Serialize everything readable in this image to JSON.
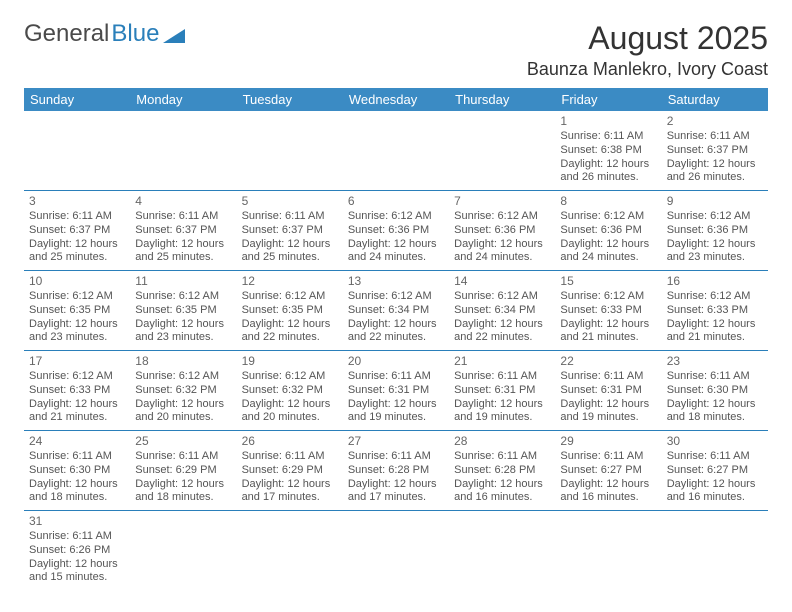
{
  "logo": {
    "text1": "General",
    "text2": "Blue",
    "triangle_color": "#2a7fba"
  },
  "title": "August 2025",
  "location": "Baunza Manlekro, Ivory Coast",
  "colors": {
    "header_bg": "#3b8bc4",
    "header_text": "#ffffff",
    "row_border": "#2a7fba",
    "body_text": "#555555",
    "title_text": "#333333"
  },
  "typography": {
    "title_fontsize": 32,
    "location_fontsize": 18,
    "weekday_fontsize": 13,
    "cell_fontsize": 11,
    "daynum_fontsize": 12
  },
  "weekdays": [
    "Sunday",
    "Monday",
    "Tuesday",
    "Wednesday",
    "Thursday",
    "Friday",
    "Saturday"
  ],
  "weeks": [
    [
      null,
      null,
      null,
      null,
      null,
      {
        "n": "1",
        "sr": "Sunrise: 6:11 AM",
        "ss": "Sunset: 6:38 PM",
        "dl": "Daylight: 12 hours and 26 minutes."
      },
      {
        "n": "2",
        "sr": "Sunrise: 6:11 AM",
        "ss": "Sunset: 6:37 PM",
        "dl": "Daylight: 12 hours and 26 minutes."
      }
    ],
    [
      {
        "n": "3",
        "sr": "Sunrise: 6:11 AM",
        "ss": "Sunset: 6:37 PM",
        "dl": "Daylight: 12 hours and 25 minutes."
      },
      {
        "n": "4",
        "sr": "Sunrise: 6:11 AM",
        "ss": "Sunset: 6:37 PM",
        "dl": "Daylight: 12 hours and 25 minutes."
      },
      {
        "n": "5",
        "sr": "Sunrise: 6:11 AM",
        "ss": "Sunset: 6:37 PM",
        "dl": "Daylight: 12 hours and 25 minutes."
      },
      {
        "n": "6",
        "sr": "Sunrise: 6:12 AM",
        "ss": "Sunset: 6:36 PM",
        "dl": "Daylight: 12 hours and 24 minutes."
      },
      {
        "n": "7",
        "sr": "Sunrise: 6:12 AM",
        "ss": "Sunset: 6:36 PM",
        "dl": "Daylight: 12 hours and 24 minutes."
      },
      {
        "n": "8",
        "sr": "Sunrise: 6:12 AM",
        "ss": "Sunset: 6:36 PM",
        "dl": "Daylight: 12 hours and 24 minutes."
      },
      {
        "n": "9",
        "sr": "Sunrise: 6:12 AM",
        "ss": "Sunset: 6:36 PM",
        "dl": "Daylight: 12 hours and 23 minutes."
      }
    ],
    [
      {
        "n": "10",
        "sr": "Sunrise: 6:12 AM",
        "ss": "Sunset: 6:35 PM",
        "dl": "Daylight: 12 hours and 23 minutes."
      },
      {
        "n": "11",
        "sr": "Sunrise: 6:12 AM",
        "ss": "Sunset: 6:35 PM",
        "dl": "Daylight: 12 hours and 23 minutes."
      },
      {
        "n": "12",
        "sr": "Sunrise: 6:12 AM",
        "ss": "Sunset: 6:35 PM",
        "dl": "Daylight: 12 hours and 22 minutes."
      },
      {
        "n": "13",
        "sr": "Sunrise: 6:12 AM",
        "ss": "Sunset: 6:34 PM",
        "dl": "Daylight: 12 hours and 22 minutes."
      },
      {
        "n": "14",
        "sr": "Sunrise: 6:12 AM",
        "ss": "Sunset: 6:34 PM",
        "dl": "Daylight: 12 hours and 22 minutes."
      },
      {
        "n": "15",
        "sr": "Sunrise: 6:12 AM",
        "ss": "Sunset: 6:33 PM",
        "dl": "Daylight: 12 hours and 21 minutes."
      },
      {
        "n": "16",
        "sr": "Sunrise: 6:12 AM",
        "ss": "Sunset: 6:33 PM",
        "dl": "Daylight: 12 hours and 21 minutes."
      }
    ],
    [
      {
        "n": "17",
        "sr": "Sunrise: 6:12 AM",
        "ss": "Sunset: 6:33 PM",
        "dl": "Daylight: 12 hours and 21 minutes."
      },
      {
        "n": "18",
        "sr": "Sunrise: 6:12 AM",
        "ss": "Sunset: 6:32 PM",
        "dl": "Daylight: 12 hours and 20 minutes."
      },
      {
        "n": "19",
        "sr": "Sunrise: 6:12 AM",
        "ss": "Sunset: 6:32 PM",
        "dl": "Daylight: 12 hours and 20 minutes."
      },
      {
        "n": "20",
        "sr": "Sunrise: 6:11 AM",
        "ss": "Sunset: 6:31 PM",
        "dl": "Daylight: 12 hours and 19 minutes."
      },
      {
        "n": "21",
        "sr": "Sunrise: 6:11 AM",
        "ss": "Sunset: 6:31 PM",
        "dl": "Daylight: 12 hours and 19 minutes."
      },
      {
        "n": "22",
        "sr": "Sunrise: 6:11 AM",
        "ss": "Sunset: 6:31 PM",
        "dl": "Daylight: 12 hours and 19 minutes."
      },
      {
        "n": "23",
        "sr": "Sunrise: 6:11 AM",
        "ss": "Sunset: 6:30 PM",
        "dl": "Daylight: 12 hours and 18 minutes."
      }
    ],
    [
      {
        "n": "24",
        "sr": "Sunrise: 6:11 AM",
        "ss": "Sunset: 6:30 PM",
        "dl": "Daylight: 12 hours and 18 minutes."
      },
      {
        "n": "25",
        "sr": "Sunrise: 6:11 AM",
        "ss": "Sunset: 6:29 PM",
        "dl": "Daylight: 12 hours and 18 minutes."
      },
      {
        "n": "26",
        "sr": "Sunrise: 6:11 AM",
        "ss": "Sunset: 6:29 PM",
        "dl": "Daylight: 12 hours and 17 minutes."
      },
      {
        "n": "27",
        "sr": "Sunrise: 6:11 AM",
        "ss": "Sunset: 6:28 PM",
        "dl": "Daylight: 12 hours and 17 minutes."
      },
      {
        "n": "28",
        "sr": "Sunrise: 6:11 AM",
        "ss": "Sunset: 6:28 PM",
        "dl": "Daylight: 12 hours and 16 minutes."
      },
      {
        "n": "29",
        "sr": "Sunrise: 6:11 AM",
        "ss": "Sunset: 6:27 PM",
        "dl": "Daylight: 12 hours and 16 minutes."
      },
      {
        "n": "30",
        "sr": "Sunrise: 6:11 AM",
        "ss": "Sunset: 6:27 PM",
        "dl": "Daylight: 12 hours and 16 minutes."
      }
    ],
    [
      {
        "n": "31",
        "sr": "Sunrise: 6:11 AM",
        "ss": "Sunset: 6:26 PM",
        "dl": "Daylight: 12 hours and 15 minutes."
      },
      null,
      null,
      null,
      null,
      null,
      null
    ]
  ]
}
